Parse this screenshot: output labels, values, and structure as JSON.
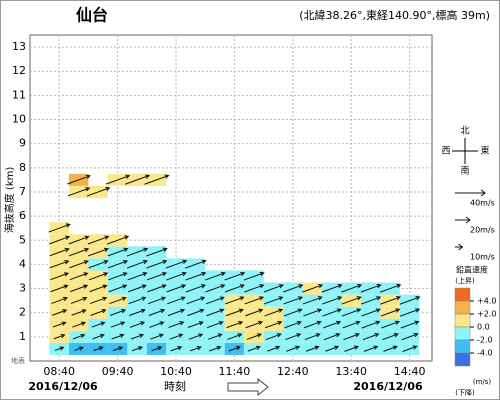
{
  "chart_data": {
    "type": "wind-profile",
    "title": "仙台",
    "subtitle": "(北緯38.26°,東経140.90°,標高 39m)",
    "y_label": "海抜高度 (km)",
    "x_label": "時刻",
    "ground_label": "地表",
    "date_start": "2016/12/06",
    "date_end": "2016/12/06",
    "annotation": "?><",
    "xlim": [
      490,
      903
    ],
    "xticks": [
      {
        "value": 520,
        "label": "08:40"
      },
      {
        "value": 580,
        "label": "09:40"
      },
      {
        "value": 640,
        "label": "10:40"
      },
      {
        "value": 700,
        "label": "11:40"
      },
      {
        "value": 760,
        "label": "12:40"
      },
      {
        "value": 820,
        "label": "13:40"
      },
      {
        "value": 880,
        "label": "14:40"
      }
    ],
    "ylim": [
      0,
      13.5
    ],
    "yticks": [
      1,
      2,
      3,
      4,
      5,
      6,
      7,
      8,
      9,
      10,
      11,
      12,
      13
    ],
    "grid": true,
    "x": [
      520,
      540,
      560,
      580,
      600,
      620,
      640,
      660,
      680,
      700,
      720,
      740,
      760,
      780,
      800,
      820,
      840,
      860,
      880
    ],
    "levels": [
      0.5,
      1,
      1.5,
      2,
      2.5,
      3,
      3.5,
      4,
      4.5,
      5,
      5.5,
      6,
      6.5,
      7,
      7.5
    ],
    "wind_to_deg": 70,
    "vertical_velocity": [
      [
        -1,
        0.5,
        1,
        1,
        0.5,
        1,
        1,
        1,
        1,
        1,
        0.5,
        null,
        null,
        null,
        null
      ],
      [
        -3,
        -1,
        0.5,
        1,
        0.5,
        1,
        0.5,
        0.5,
        1,
        0.5,
        null,
        null,
        null,
        1,
        2.5
      ],
      [
        -3,
        -1,
        -0.5,
        0.5,
        1,
        0.5,
        0.5,
        -0.5,
        0.5,
        0.5,
        null,
        null,
        null,
        1,
        null
      ],
      [
        -3,
        -1,
        -1,
        -0.5,
        0.5,
        -0.5,
        -0.5,
        -0.5,
        -0.5,
        0.5,
        null,
        null,
        null,
        null,
        1
      ],
      [
        -1,
        -1,
        -1,
        -1,
        -0.5,
        -0.5,
        -0.5,
        -0.5,
        -0.5,
        null,
        null,
        null,
        null,
        null,
        1
      ],
      [
        -2.5,
        -1,
        -1,
        -1,
        -1,
        -0.5,
        -0.5,
        -0.5,
        -1,
        null,
        null,
        null,
        null,
        null,
        1
      ],
      [
        -1,
        -1,
        -0.5,
        -0.5,
        -1,
        -0.5,
        -0.5,
        -0.5,
        null,
        null,
        null,
        null,
        null,
        null,
        null
      ],
      [
        -1,
        -1,
        -1,
        -0.5,
        -0.5,
        -0.5,
        -0.5,
        -0.5,
        null,
        null,
        null,
        null,
        null,
        null,
        null
      ],
      [
        -1,
        -0.5,
        -1,
        -0.5,
        -0.5,
        -0.5,
        -1,
        null,
        null,
        null,
        null,
        null,
        null,
        null,
        null
      ],
      [
        -2.5,
        -1,
        0.5,
        1,
        1,
        -0.5,
        -0.5,
        null,
        null,
        null,
        null,
        null,
        null,
        null,
        null
      ],
      [
        -1,
        0.5,
        1,
        1,
        0.5,
        -0.5,
        -0.5,
        null,
        null,
        null,
        null,
        null,
        null,
        null,
        null
      ],
      [
        -1,
        -1,
        1,
        0.5,
        -0.5,
        -0.5,
        null,
        null,
        null,
        null,
        null,
        null,
        null,
        null,
        null
      ],
      [
        -1,
        -1,
        -0.5,
        -0.5,
        -0.5,
        -0.5,
        null,
        null,
        null,
        null,
        null,
        null,
        null,
        null,
        null
      ],
      [
        -1,
        -0.5,
        -0.5,
        -1,
        -0.5,
        0.5,
        null,
        null,
        null,
        null,
        null,
        null,
        null,
        null,
        null
      ],
      [
        -1,
        -1,
        -1,
        -0.5,
        -0.5,
        -0.5,
        null,
        null,
        null,
        null,
        null,
        null,
        null,
        null,
        null
      ],
      [
        -1,
        -1,
        -0.5,
        -0.5,
        0.5,
        -0.5,
        null,
        null,
        null,
        null,
        null,
        null,
        null,
        null,
        null
      ],
      [
        -1,
        -1,
        -0.5,
        -0.5,
        -0.5,
        -0.5,
        null,
        null,
        null,
        null,
        null,
        null,
        null,
        null,
        null
      ],
      [
        -1,
        -1,
        -0.5,
        0.5,
        0.5,
        -0.5,
        null,
        null,
        null,
        null,
        null,
        null,
        null,
        null,
        null
      ],
      [
        -1,
        -0.5,
        -0.5,
        -0.5,
        -0.5,
        null,
        null,
        null,
        null,
        null,
        null,
        null,
        null,
        null,
        null
      ]
    ],
    "wind_speed": [
      [
        12,
        15,
        18,
        20,
        22,
        24,
        25,
        26,
        27,
        28,
        30,
        null,
        null,
        null,
        null
      ],
      [
        12,
        16,
        18,
        20,
        22,
        24,
        25,
        26,
        27,
        28,
        null,
        null,
        null,
        30,
        32
      ],
      [
        13,
        16,
        18,
        21,
        23,
        24,
        26,
        27,
        28,
        29,
        null,
        null,
        null,
        32,
        null
      ],
      [
        13,
        17,
        19,
        21,
        23,
        25,
        26,
        27,
        28,
        30,
        null,
        null,
        null,
        null,
        33
      ],
      [
        14,
        17,
        20,
        22,
        24,
        25,
        27,
        28,
        29,
        null,
        null,
        null,
        null,
        null,
        34
      ],
      [
        14,
        18,
        20,
        22,
        24,
        26,
        27,
        28,
        29,
        null,
        null,
        null,
        null,
        null,
        34
      ],
      [
        15,
        18,
        21,
        23,
        25,
        26,
        28,
        29,
        null,
        null,
        null,
        null,
        null,
        null,
        null
      ],
      [
        15,
        19,
        21,
        23,
        25,
        27,
        28,
        29,
        null,
        null,
        null,
        null,
        null,
        null,
        null
      ],
      [
        16,
        19,
        22,
        24,
        25,
        27,
        28,
        null,
        null,
        null,
        null,
        null,
        null,
        null,
        null
      ],
      [
        16,
        20,
        22,
        24,
        26,
        27,
        28,
        null,
        null,
        null,
        null,
        null,
        null,
        null,
        null
      ],
      [
        17,
        20,
        23,
        24,
        26,
        27,
        28,
        null,
        null,
        null,
        null,
        null,
        null,
        null,
        null
      ],
      [
        17,
        21,
        23,
        25,
        26,
        27,
        null,
        null,
        null,
        null,
        null,
        null,
        null,
        null,
        null
      ],
      [
        18,
        21,
        23,
        25,
        26,
        27,
        null,
        null,
        null,
        null,
        null,
        null,
        null,
        null,
        null
      ],
      [
        18,
        21,
        24,
        25,
        27,
        28,
        null,
        null,
        null,
        null,
        null,
        null,
        null,
        null,
        null
      ],
      [
        18,
        22,
        24,
        26,
        27,
        28,
        null,
        null,
        null,
        null,
        null,
        null,
        null,
        null,
        null
      ],
      [
        19,
        22,
        24,
        26,
        27,
        28,
        null,
        null,
        null,
        null,
        null,
        null,
        null,
        null,
        null
      ],
      [
        19,
        22,
        25,
        26,
        27,
        28,
        null,
        null,
        null,
        null,
        null,
        null,
        null,
        null,
        null
      ],
      [
        19,
        22,
        25,
        26,
        28,
        29,
        null,
        null,
        null,
        null,
        null,
        null,
        null,
        null,
        null
      ],
      [
        20,
        23,
        25,
        27,
        28,
        null,
        null,
        null,
        null,
        null,
        null,
        null,
        null,
        null,
        null
      ]
    ],
    "speed_legend": [
      {
        "value": 40,
        "label": "40m/s"
      },
      {
        "value": 20,
        "label": "20m/s"
      },
      {
        "value": 10,
        "label": "10m/s"
      }
    ],
    "compass": {
      "north": "北",
      "south": "南",
      "west": "西",
      "east": "東"
    },
    "vv_legend": {
      "title": "鉛直速度",
      "up": "(上昇)",
      "down": "(下降)",
      "unit": "(m/s)",
      "ticks": [
        {
          "value": 4,
          "label": "+4.0"
        },
        {
          "value": 2,
          "label": "+2.0"
        },
        {
          "value": 0,
          "label": "0.0"
        },
        {
          "value": -2,
          "label": "-2.0"
        },
        {
          "value": -4,
          "label": "-4.0"
        }
      ],
      "colors": [
        "#ee6a1c",
        "#f3b24a",
        "#fbe88a",
        "#8ff4f8",
        "#3ec0f2",
        "#3a6fe6"
      ]
    }
  }
}
